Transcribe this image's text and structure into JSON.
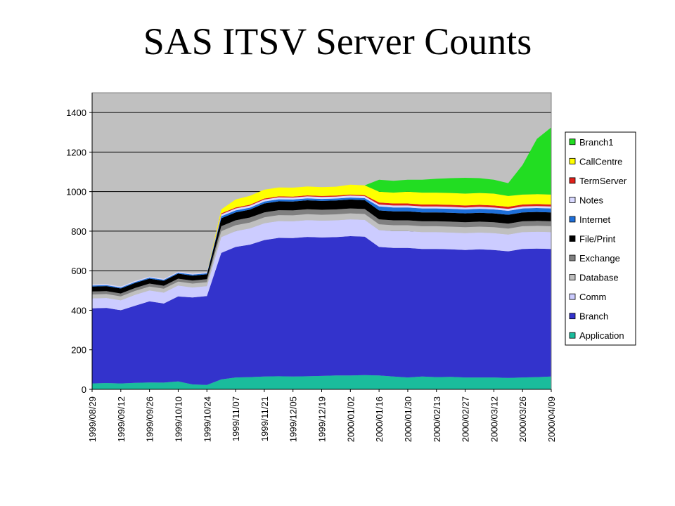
{
  "title": "SAS ITSV Server Counts",
  "chart_data": {
    "type": "area",
    "stacked": true,
    "title": "SAS ITSV Server Counts",
    "xlabel": "",
    "ylabel": "",
    "ylim": [
      0,
      1500
    ],
    "yticks": [
      0,
      200,
      400,
      600,
      800,
      1000,
      1200,
      1400
    ],
    "grid": true,
    "legend_position": "right",
    "x_tick_labels": [
      "1999/08/29",
      "1999/09/12",
      "1999/09/26",
      "1999/10/10",
      "1999/10/24",
      "1999/11/07",
      "1999/11/21",
      "1999/12/05",
      "1999/12/19",
      "2000/01/02",
      "2000/01/16",
      "2000/01/30",
      "2000/02/13",
      "2000/02/27",
      "2000/03/12",
      "2000/03/26",
      "2000/04/09"
    ],
    "x": [
      "1999/08/29",
      "1999/09/05",
      "1999/09/12",
      "1999/09/19",
      "1999/09/26",
      "1999/10/03",
      "1999/10/10",
      "1999/10/17",
      "1999/10/24",
      "1999/10/31",
      "1999/11/07",
      "1999/11/14",
      "1999/11/21",
      "1999/11/28",
      "1999/12/05",
      "1999/12/12",
      "1999/12/19",
      "1999/12/26",
      "2000/01/02",
      "2000/01/09",
      "2000/01/16",
      "2000/01/23",
      "2000/01/30",
      "2000/02/06",
      "2000/02/13",
      "2000/02/20",
      "2000/02/27",
      "2000/03/05",
      "2000/03/12",
      "2000/03/19",
      "2000/03/26",
      "2000/04/02",
      "2000/04/09"
    ],
    "series": [
      {
        "name": "Application",
        "color": "#1abc9c",
        "values": [
          30,
          32,
          30,
          33,
          35,
          34,
          40,
          25,
          22,
          50,
          60,
          62,
          65,
          66,
          65,
          66,
          68,
          70,
          70,
          72,
          70,
          65,
          60,
          65,
          62,
          63,
          60,
          60,
          60,
          58,
          60,
          62,
          65
        ]
      },
      {
        "name": "Branch",
        "color": "#3333cc",
        "values": [
          380,
          380,
          370,
          390,
          410,
          400,
          430,
          440,
          450,
          640,
          660,
          670,
          690,
          700,
          700,
          705,
          700,
          700,
          705,
          700,
          650,
          650,
          655,
          645,
          648,
          645,
          645,
          648,
          645,
          640,
          650,
          650,
          645
        ]
      },
      {
        "name": "Comm",
        "color": "#ccccff",
        "values": [
          50,
          50,
          50,
          55,
          55,
          55,
          55,
          50,
          50,
          80,
          80,
          82,
          85,
          85,
          85,
          85,
          85,
          85,
          85,
          85,
          85,
          85,
          85,
          85,
          85,
          85,
          85,
          85,
          85,
          85,
          85,
          85,
          85
        ]
      },
      {
        "name": "Database",
        "color": "#bfbfbf",
        "values": [
          20,
          20,
          20,
          20,
          20,
          20,
          20,
          20,
          20,
          30,
          30,
          30,
          30,
          30,
          30,
          30,
          30,
          30,
          30,
          30,
          30,
          30,
          30,
          30,
          30,
          30,
          30,
          30,
          30,
          30,
          30,
          30,
          30
        ]
      },
      {
        "name": "Exchange",
        "color": "#808080",
        "values": [
          15,
          15,
          15,
          15,
          15,
          15,
          15,
          15,
          15,
          25,
          25,
          25,
          25,
          25,
          25,
          25,
          25,
          25,
          25,
          25,
          25,
          25,
          25,
          25,
          25,
          25,
          25,
          25,
          25,
          25,
          25,
          25,
          25
        ]
      },
      {
        "name": "File/Print",
        "color": "#000000",
        "values": [
          25,
          25,
          25,
          25,
          25,
          25,
          25,
          25,
          25,
          40,
          40,
          40,
          45,
          45,
          45,
          45,
          45,
          45,
          45,
          45,
          45,
          45,
          45,
          45,
          45,
          45,
          45,
          45,
          45,
          45,
          45,
          45,
          45
        ]
      },
      {
        "name": "Internet",
        "color": "#1e6fd9",
        "values": [
          5,
          5,
          5,
          5,
          5,
          5,
          5,
          5,
          5,
          10,
          10,
          10,
          10,
          10,
          10,
          10,
          10,
          10,
          10,
          10,
          20,
          20,
          20,
          20,
          20,
          20,
          20,
          20,
          20,
          20,
          20,
          20,
          20
        ]
      },
      {
        "name": "Notes",
        "color": "#d9d9ff",
        "values": [
          5,
          5,
          5,
          5,
          5,
          5,
          5,
          5,
          5,
          10,
          10,
          10,
          10,
          10,
          10,
          10,
          10,
          10,
          10,
          10,
          10,
          10,
          10,
          10,
          10,
          10,
          10,
          10,
          10,
          10,
          10,
          10,
          10
        ]
      },
      {
        "name": "TermServer",
        "color": "#e0201a",
        "values": [
          0,
          0,
          0,
          0,
          0,
          0,
          0,
          0,
          0,
          5,
          5,
          5,
          5,
          5,
          5,
          5,
          5,
          5,
          5,
          5,
          10,
          10,
          10,
          10,
          10,
          10,
          10,
          10,
          10,
          10,
          10,
          10,
          10
        ]
      },
      {
        "name": "CallCentre",
        "color": "#ffff00",
        "values": [
          0,
          0,
          0,
          0,
          0,
          0,
          0,
          0,
          0,
          20,
          40,
          45,
          45,
          45,
          45,
          45,
          45,
          45,
          50,
          50,
          55,
          55,
          60,
          60,
          60,
          60,
          60,
          60,
          60,
          55,
          50,
          50,
          50
        ]
      },
      {
        "name": "Branch1",
        "color": "#22dd22",
        "values": [
          0,
          0,
          0,
          0,
          0,
          0,
          0,
          0,
          0,
          0,
          0,
          0,
          0,
          0,
          0,
          0,
          0,
          0,
          0,
          0,
          60,
          60,
          60,
          65,
          70,
          75,
          80,
          75,
          70,
          65,
          150,
          280,
          340
        ]
      }
    ]
  }
}
